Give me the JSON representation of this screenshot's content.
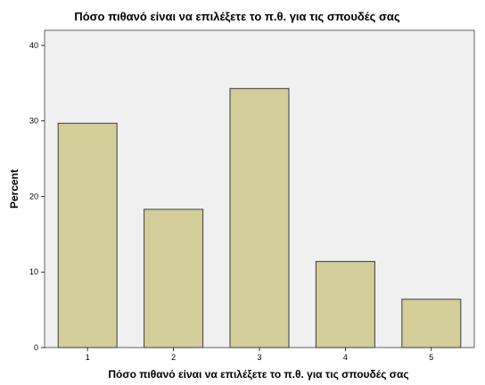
{
  "colors": {
    "bar_fill": "#d3cd99",
    "bar_stroke": "#3c3c3c",
    "plot_background": "#f0f0f0",
    "axis": "#000000",
    "page_background": "#ffffff"
  },
  "chart_data": {
    "type": "bar",
    "title": "Πόσο πιθανό είναι να επιλέξετε το π.θ. για τις σπουδές σας",
    "xlabel": "Πόσο πιθανό είναι να επιλέξετε το π.θ. για τις σπουδές σας",
    "ylabel": "Percent",
    "categories": [
      "1",
      "2",
      "3",
      "4",
      "5"
    ],
    "values": [
      29.7,
      18.3,
      34.3,
      11.4,
      6.4
    ],
    "ylim": [
      0,
      42
    ],
    "yticks": [
      0,
      10,
      20,
      30,
      40
    ],
    "grid": false,
    "legend": "none"
  }
}
